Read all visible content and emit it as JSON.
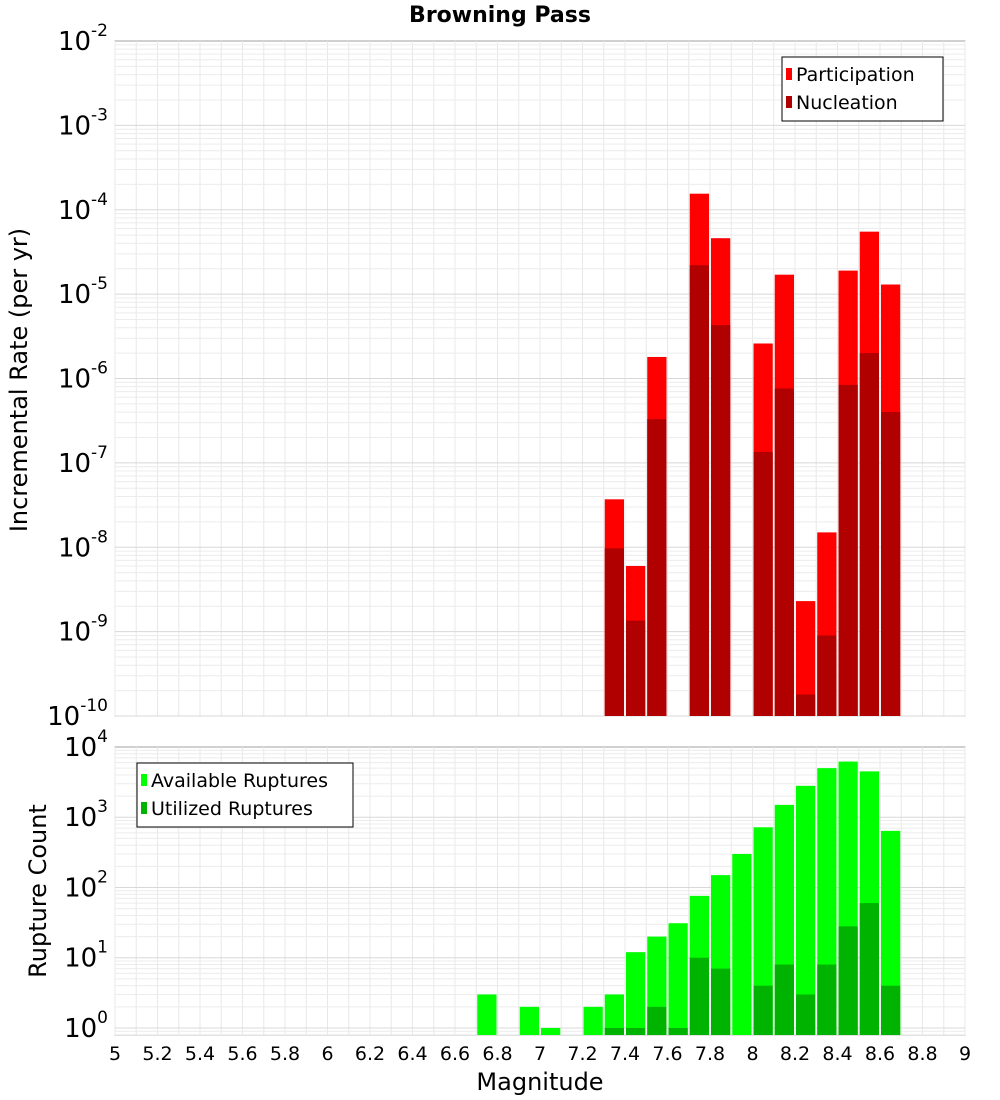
{
  "title": "Browning Pass",
  "chart_data": [
    {
      "type": "bar",
      "ylabel": "Incremental Rate (per yr)",
      "xlabel": "",
      "xlim": [
        5,
        9
      ],
      "ylim_exp": [
        -10,
        -2
      ],
      "yscale": "log",
      "grid": true,
      "legend_position": "top-right",
      "x": [
        7.35,
        7.45,
        7.55,
        7.75,
        7.85,
        8.05,
        8.15,
        8.25,
        8.35,
        8.45,
        8.55,
        8.65
      ],
      "series": [
        {
          "name": "Participation",
          "color": "#ff0000",
          "values": [
            3.7e-08,
            6e-09,
            1.8e-06,
            0.000155,
            4.6e-05,
            2.6e-06,
            1.7e-05,
            2.3e-09,
            1.5e-08,
            1.9e-05,
            5.5e-05,
            1.3e-05
          ]
        },
        {
          "name": "Nucleation",
          "color": "#b00000",
          "values": [
            9.7e-09,
            1.35e-09,
            3.3e-07,
            2.2e-05,
            4.3e-06,
            1.35e-07,
            7.6e-07,
            1.8e-10,
            9e-10,
            8.4e-07,
            2e-06,
            4e-07
          ]
        }
      ],
      "ytick_exponents": [
        "-10",
        "-9",
        "-8",
        "-7",
        "-6",
        "-5",
        "-4",
        "-3",
        "-2"
      ]
    },
    {
      "type": "bar",
      "ylabel": "Rupture Count",
      "xlabel": "Magnitude",
      "xlim": [
        5,
        9
      ],
      "ylim_exp": [
        -0.1,
        4
      ],
      "yscale": "log",
      "grid": true,
      "legend_position": "top-left",
      "x": [
        6.75,
        6.95,
        7.05,
        7.25,
        7.35,
        7.45,
        7.55,
        7.65,
        7.75,
        7.85,
        7.95,
        8.05,
        8.15,
        8.25,
        8.35,
        8.45,
        8.55,
        8.65
      ],
      "series": [
        {
          "name": "Available Ruptures",
          "color": "#00ff00",
          "values": [
            3,
            2,
            1,
            2,
            3,
            12,
            20,
            31,
            76,
            150,
            300,
            720,
            1500,
            2800,
            5000,
            6200,
            4500,
            640
          ]
        },
        {
          "name": "Utilized Ruptures",
          "color": "#00b300",
          "values": [
            0,
            0,
            0,
            0,
            1,
            1,
            2,
            1,
            10,
            7,
            0,
            4,
            8,
            3,
            8,
            28,
            60,
            4
          ]
        }
      ],
      "ytick_exponents": [
        "0",
        "1",
        "2",
        "3",
        "4"
      ]
    }
  ],
  "xticks": [
    "5",
    "5.2",
    "5.4",
    "5.6",
    "5.8",
    "6",
    "6.2",
    "6.4",
    "6.6",
    "6.8",
    "7",
    "7.2",
    "7.4",
    "7.6",
    "7.8",
    "8",
    "8.2",
    "8.4",
    "8.6",
    "8.8",
    "9"
  ],
  "tick_base": "10"
}
